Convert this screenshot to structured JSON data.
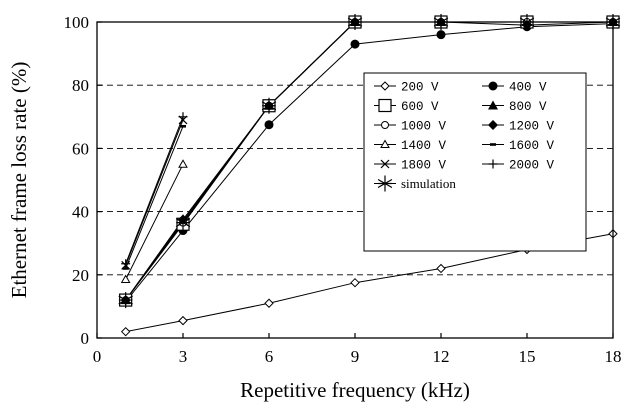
{
  "chart_data": {
    "type": "line",
    "title": "",
    "xlabel": "Repetitive frequency (kHz)",
    "ylabel": "Ethernet frame loss rate (%)",
    "xlim": [
      0,
      18
    ],
    "ylim": [
      0,
      100
    ],
    "xticks": [
      0,
      3,
      6,
      9,
      12,
      15,
      18
    ],
    "yticks": [
      0,
      20,
      40,
      60,
      80,
      100
    ],
    "grid": "horizontal dashed",
    "legend_position": "center-right",
    "series": [
      {
        "name": "200 V",
        "marker": "diamond-open",
        "x": [
          1,
          3,
          6,
          9,
          12,
          15,
          18
        ],
        "y": [
          2,
          5.5,
          11,
          17.5,
          22,
          28,
          33
        ]
      },
      {
        "name": "400 V",
        "marker": "circle-filled",
        "x": [
          1,
          3,
          6,
          9,
          12,
          15,
          18
        ],
        "y": [
          11.5,
          34,
          67.5,
          93,
          96,
          98.5,
          99.5
        ]
      },
      {
        "name": "600 V",
        "marker": "square-open",
        "x": [
          1,
          3,
          6,
          9,
          12,
          15,
          18
        ],
        "y": [
          12,
          36,
          73.5,
          100,
          100,
          100,
          100
        ]
      },
      {
        "name": "800 V",
        "marker": "triangle-filled",
        "x": [
          1,
          3,
          6,
          9,
          12,
          15,
          18
        ],
        "y": [
          12,
          37,
          73.5,
          100,
          100,
          100,
          100
        ]
      },
      {
        "name": "1000 V",
        "marker": "circle-open",
        "x": [
          1,
          3,
          6,
          9,
          12,
          15,
          18
        ],
        "y": [
          12,
          36.5,
          73.5,
          100,
          100,
          100,
          100
        ]
      },
      {
        "name": "1200 V",
        "marker": "diamond-filled",
        "x": [
          1,
          3,
          6,
          9,
          12,
          15,
          18
        ],
        "y": [
          12,
          37.5,
          73.5,
          100,
          100,
          99,
          100
        ]
      },
      {
        "name": "1400 V",
        "marker": "triangle-open",
        "x": [
          1,
          3
        ],
        "y": [
          18.5,
          55
        ]
      },
      {
        "name": "1600 V",
        "marker": "dash",
        "x": [
          1,
          3
        ],
        "y": [
          22,
          67
        ]
      },
      {
        "name": "1800 V",
        "marker": "x",
        "x": [
          1,
          3
        ],
        "y": [
          23,
          69
        ]
      },
      {
        "name": "2000 V",
        "marker": "plus",
        "x": [
          1,
          3
        ],
        "y": [
          23.5,
          70
        ]
      },
      {
        "name": "simulation",
        "marker": "asterisk",
        "x": [
          1,
          3,
          6,
          9,
          12,
          15,
          18
        ],
        "y": [
          12,
          36.5,
          73.5,
          100,
          100,
          100,
          100
        ]
      }
    ]
  }
}
